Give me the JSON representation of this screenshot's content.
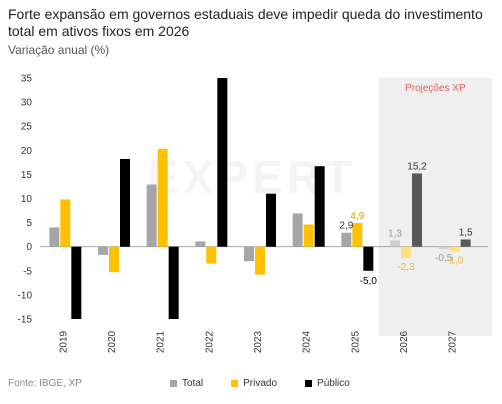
{
  "title": "Forte expansão em governos estaduais deve impedir queda do investimento total em ativos fixos em 2026",
  "subtitle": "Variação anual (%)",
  "source": "Fonte: IBGE, XP",
  "projection_label": "Projeções XP",
  "watermark": "EXPERT",
  "colors": {
    "total": "#a6a6a6",
    "privado": "#ffc000",
    "publico": "#000000",
    "total_proj": "#cfcfcf",
    "privado_proj": "#ffe080",
    "publico_proj": "#595959",
    "projection_bg": "#efefef",
    "projection_text": "#e06060"
  },
  "chart_data": {
    "type": "bar",
    "categories": [
      "2019",
      "2020",
      "2021",
      "2022",
      "2023",
      "2024",
      "2025",
      "2026",
      "2027"
    ],
    "series": [
      {
        "name": "Total",
        "values": [
          4.0,
          -1.7,
          12.9,
          1.1,
          -3.0,
          6.9,
          2.9,
          1.3,
          -0.5
        ]
      },
      {
        "name": "Privado",
        "values": [
          9.8,
          -5.3,
          20.3,
          -3.5,
          -5.8,
          4.6,
          4.9,
          -2.3,
          -1.0
        ]
      },
      {
        "name": "Público",
        "values": [
          -15,
          18.2,
          -15,
          35,
          11.0,
          16.7,
          -5.0,
          15.2,
          1.5
        ]
      }
    ],
    "data_labels": [
      {
        "category": "2025",
        "series": "Total",
        "text": "2,9"
      },
      {
        "category": "2025",
        "series": "Privado",
        "text": "4,9"
      },
      {
        "category": "2025",
        "series": "Público",
        "text": "-5,0"
      },
      {
        "category": "2026",
        "series": "Total",
        "text": "1,3"
      },
      {
        "category": "2026",
        "series": "Privado",
        "text": "-2,3"
      },
      {
        "category": "2026",
        "series": "Público",
        "text": "15,2"
      },
      {
        "category": "2027",
        "series": "Total",
        "text": "-0,5"
      },
      {
        "category": "2027",
        "series": "Privado",
        "text": "-1,0"
      },
      {
        "category": "2027",
        "series": "Público",
        "text": "1,5"
      }
    ],
    "y_ticks": [
      "35",
      "30",
      "25",
      "20",
      "15",
      "10",
      "5",
      "0",
      "-5",
      "-10",
      "-15"
    ],
    "ylim": [
      -15,
      35
    ],
    "projection_categories": [
      "2026",
      "2027"
    ],
    "legend": "bottom"
  }
}
